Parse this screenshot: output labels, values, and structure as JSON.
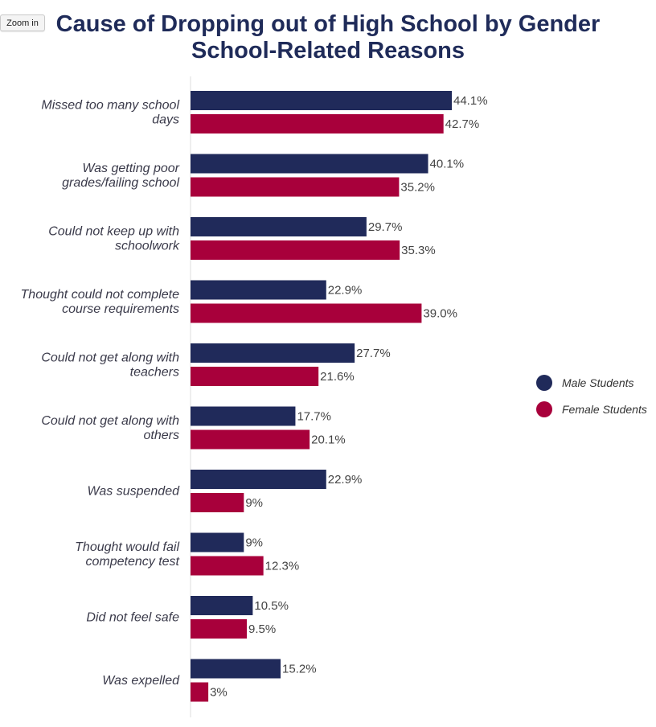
{
  "ui": {
    "zoom_label": "Zoom in"
  },
  "chart_data": {
    "type": "bar",
    "orientation": "horizontal",
    "title_line1": "Cause of Dropping out of High School by Gender",
    "title_line2": "School-Related Reasons",
    "categories": [
      [
        "Missed too many school",
        "days"
      ],
      [
        "Was getting poor",
        "grades/failing school"
      ],
      [
        "Could not keep up with",
        "schoolwork"
      ],
      [
        "Thought could not complete",
        "course requirements"
      ],
      [
        "Could not get along with",
        "teachers"
      ],
      [
        "Could not get along with",
        "others"
      ],
      [
        "Was suspended"
      ],
      [
        "Thought would fail",
        "competency test"
      ],
      [
        "Did not feel safe"
      ],
      [
        "Was expelled"
      ]
    ],
    "series": [
      {
        "name": "Male Students",
        "color": "#202a5a",
        "values": [
          44.1,
          40.1,
          29.7,
          22.9,
          27.7,
          17.7,
          22.9,
          9,
          10.5,
          15.2
        ],
        "labels": [
          "44.1%",
          "40.1%",
          "29.7%",
          "22.9%",
          "27.7%",
          "17.7%",
          "22.9%",
          "9%",
          "10.5%",
          "15.2%"
        ]
      },
      {
        "name": "Female Students",
        "color": "#a8003b",
        "values": [
          42.7,
          35.2,
          35.3,
          39.0,
          21.6,
          20.1,
          9,
          12.3,
          9.5,
          3
        ],
        "labels": [
          "42.7%",
          "35.2%",
          "35.3%",
          "39.0%",
          "21.6%",
          "20.1%",
          "9%",
          "12.3%",
          "9.5%",
          "3%"
        ]
      }
    ],
    "xlim": [
      0,
      50
    ],
    "axis_line_color": "#dddddd",
    "legend_position": "right",
    "grid": false
  }
}
